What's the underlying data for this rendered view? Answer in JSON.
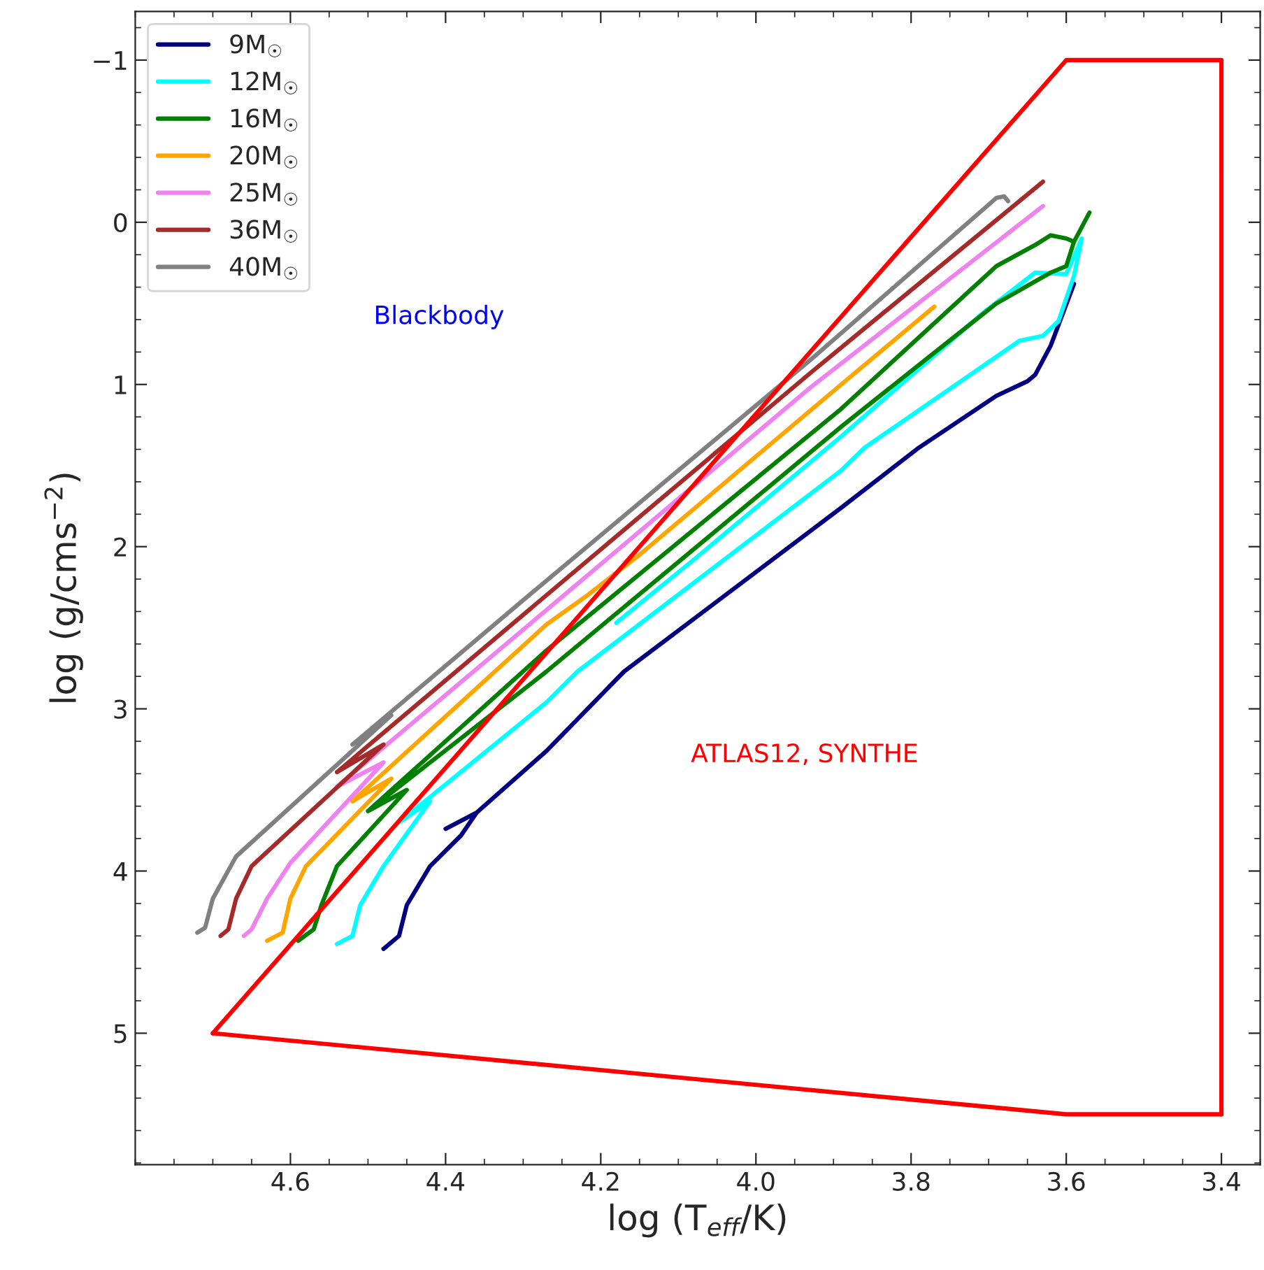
{
  "chart_data": {
    "type": "line",
    "xlabel": "log (T$_{eff}$/K)",
    "ylabel": "log (g/cms$^{−2}$)",
    "xlim": [
      4.8,
      3.35
    ],
    "ylim": [
      5.81,
      -1.3
    ],
    "xticks": [
      4.6,
      4.4,
      4.2,
      {
        "value": 4.0,
        "label": "4.0"
      },
      3.8,
      3.6,
      3.4
    ],
    "yticks": [
      {
        "value": -1,
        "label": "−1"
      },
      0,
      1,
      2,
      3,
      4,
      5
    ],
    "grid": false,
    "legend": "top left",
    "line_style": "solid",
    "series": [
      {
        "name": "9M$_{☉}$",
        "color": "#000080",
        "x": [
          4.48,
          4.46,
          4.45,
          4.42,
          4.38,
          4.36,
          4.4,
          4.36,
          4.27,
          4.17,
          3.89,
          3.79,
          3.69,
          3.65,
          3.64,
          3.62,
          3.59
        ],
        "values": [
          4.48,
          4.4,
          4.21,
          3.97,
          3.78,
          3.64,
          3.74,
          3.64,
          3.26,
          2.77,
          1.76,
          1.39,
          1.07,
          0.98,
          0.94,
          0.76,
          0.38
        ]
      },
      {
        "name": "12M$_{☉}$",
        "color": "#00ffff",
        "x": [
          4.54,
          4.52,
          4.51,
          4.48,
          4.42,
          4.46,
          4.27,
          4.23,
          3.89,
          3.86,
          3.66,
          3.63,
          3.61,
          3.59,
          3.58,
          3.6,
          3.64,
          3.71,
          3.89,
          4.08,
          4.18
        ],
        "values": [
          4.45,
          4.4,
          4.21,
          3.97,
          3.57,
          3.7,
          2.96,
          2.77,
          1.53,
          1.39,
          0.73,
          0.7,
          0.61,
          0.33,
          0.1,
          0.32,
          0.31,
          0.57,
          1.32,
          2.08,
          2.47
        ]
      },
      {
        "name": "16M$_{☉}$",
        "color": "#008000",
        "x": [
          4.59,
          4.57,
          4.56,
          4.54,
          4.45,
          4.5,
          4.27,
          3.89,
          3.69,
          3.62,
          3.6,
          3.59,
          3.57,
          3.59,
          3.6,
          3.62,
          3.64,
          3.69,
          3.89,
          4.27,
          4.5
        ],
        "values": [
          4.43,
          4.36,
          4.21,
          3.97,
          3.5,
          3.63,
          2.77,
          1.26,
          0.5,
          0.31,
          0.27,
          0.12,
          -0.06,
          0.12,
          0.1,
          0.08,
          0.14,
          0.27,
          1.15,
          2.64,
          3.63
        ]
      },
      {
        "name": "20M$_{☉}$",
        "color": "#ffa500",
        "x": [
          4.63,
          4.61,
          4.6,
          4.58,
          4.47,
          4.52,
          4.27,
          4.22,
          4.15,
          3.89,
          3.77
        ],
        "values": [
          4.43,
          4.38,
          4.17,
          3.97,
          3.43,
          3.57,
          2.48,
          2.31,
          2.05,
          1.0,
          0.52
        ]
      },
      {
        "name": "25M$_{☉}$",
        "color": "#ee82ee",
        "x": [
          4.66,
          4.65,
          4.63,
          4.6,
          4.48,
          4.54,
          4.25,
          3.93,
          3.63
        ],
        "values": [
          4.4,
          4.36,
          4.17,
          3.95,
          3.33,
          3.48,
          2.31,
          1.02,
          -0.1
        ]
      },
      {
        "name": "36M$_{☉}$",
        "color": "#a52a2a",
        "x": [
          4.69,
          4.68,
          4.67,
          4.65,
          4.48,
          4.54,
          4.29,
          3.93,
          3.63
        ],
        "values": [
          4.4,
          4.36,
          4.17,
          3.97,
          3.22,
          3.39,
          2.38,
          0.93,
          -0.25
        ]
      },
      {
        "name": "40M$_{☉}$",
        "color": "#808080",
        "x": [
          4.72,
          4.71,
          4.7,
          4.67,
          4.47,
          4.52,
          4.29,
          3.93,
          3.69,
          3.68,
          3.675
        ],
        "values": [
          4.38,
          4.35,
          4.17,
          3.91,
          3.04,
          3.22,
          2.29,
          0.85,
          -0.15,
          -0.16,
          -0.13
        ]
      },
      {
        "color": "#ff0000",
        "x": [
          4.7,
          3.6,
          3.4,
          3.4
        ],
        "values": [
          5,
          -1,
          -1,
          5.5
        ]
      },
      {
        "color": "#ff0000",
        "x": [
          4.7,
          3.6,
          3.4
        ],
        "values": [
          5,
          5.5,
          5.5
        ]
      }
    ],
    "annotations": [
      "Blackbody",
      "ATLAS12, SYNTHE"
    ]
  }
}
